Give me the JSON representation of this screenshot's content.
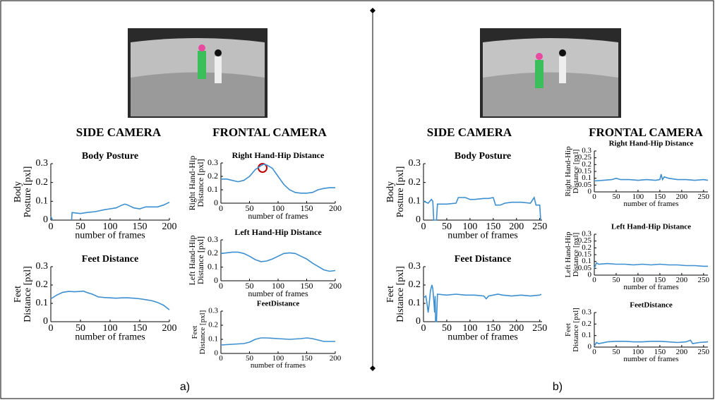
{
  "panels": [
    {
      "label": "a)",
      "headings": [
        "SIDE CAMERA",
        "FRONTAL CAMERA"
      ]
    },
    {
      "label": "b)",
      "headings": [
        "SIDE CAMERA",
        "FRONTAL CAMERA"
      ]
    }
  ],
  "chart_data": [
    {
      "type": "line",
      "title": "Body Posture",
      "ylabel": [
        "Body",
        "Posture [pxl]"
      ],
      "xlabel": "number of frames",
      "xlim": [
        0,
        200
      ],
      "xticks": [
        0,
        50,
        100,
        150,
        200
      ],
      "ylim": [
        0,
        0.3
      ],
      "yticks": [
        0,
        0.1,
        0.2,
        0.3
      ],
      "color": "#3d8fcf",
      "x": [
        0,
        3,
        5,
        35,
        36,
        50,
        60,
        75,
        90,
        100,
        110,
        120,
        125,
        130,
        140,
        150,
        160,
        170,
        180,
        190,
        200
      ],
      "values": [
        0.02,
        0,
        null,
        0,
        0.04,
        0.035,
        0.04,
        0.045,
        0.055,
        0.06,
        0.065,
        0.08,
        0.085,
        0.08,
        0.065,
        0.06,
        0.07,
        0.07,
        0.07,
        0.08,
        0.095
      ]
    },
    {
      "type": "line",
      "title": "Feet Distance",
      "ylabel": [
        "Feet",
        "Distance [pxl]"
      ],
      "xlabel": "number of frames",
      "xlim": [
        0,
        200
      ],
      "xticks": [
        0,
        50,
        100,
        150,
        200
      ],
      "ylim": [
        0,
        0.3
      ],
      "yticks": [
        0,
        0.1,
        0.2,
        0.3
      ],
      "color": "#3d8fcf",
      "x": [
        0,
        10,
        20,
        30,
        40,
        50,
        55,
        60,
        70,
        80,
        90,
        100,
        110,
        120,
        130,
        140,
        150,
        160,
        170,
        180,
        190,
        200
      ],
      "values": [
        0.125,
        0.145,
        0.16,
        0.165,
        0.163,
        0.165,
        0.167,
        0.16,
        0.15,
        0.135,
        0.132,
        0.13,
        0.128,
        0.13,
        0.13,
        0.128,
        0.125,
        0.12,
        0.115,
        0.105,
        0.09,
        0.065
      ]
    },
    {
      "type": "line",
      "title": "Right Hand-Hip Distance",
      "ylabel": [
        "Right Hand-Hip",
        "Distance [pxl]"
      ],
      "xlabel": "number of frames",
      "xlim": [
        0,
        200
      ],
      "xticks": [
        0,
        50,
        100,
        150,
        200
      ],
      "ylim": [
        0,
        0.3
      ],
      "yticks": [
        0,
        0.1,
        0.2,
        0.3
      ],
      "color": "#3d8fcf",
      "x": [
        0,
        10,
        20,
        30,
        40,
        50,
        60,
        70,
        75,
        80,
        90,
        100,
        110,
        120,
        130,
        140,
        150,
        160,
        170,
        180,
        190,
        200
      ],
      "values": [
        0.18,
        0.18,
        0.17,
        0.16,
        0.17,
        0.2,
        0.25,
        0.28,
        0.29,
        0.285,
        0.26,
        0.2,
        0.14,
        0.1,
        0.08,
        0.075,
        0.075,
        0.08,
        0.1,
        0.11,
        0.115,
        0.115
      ]
    },
    {
      "type": "line",
      "title": "Left Hand-Hip Distance",
      "ylabel": [
        "Left Hand-Hip",
        "Distance [pxl]"
      ],
      "xlabel": "number of frames",
      "xlim": [
        0,
        200
      ],
      "xticks": [
        0,
        50,
        100,
        150,
        200
      ],
      "ylim": [
        0,
        0.3
      ],
      "yticks": [
        0,
        0.1,
        0.2,
        0.3
      ],
      "color": "#3d8fcf",
      "x": [
        0,
        10,
        20,
        30,
        40,
        50,
        60,
        70,
        80,
        90,
        100,
        110,
        120,
        130,
        140,
        150,
        160,
        170,
        180,
        190,
        200
      ],
      "values": [
        0.2,
        0.205,
        0.21,
        0.21,
        0.2,
        0.18,
        0.155,
        0.14,
        0.145,
        0.16,
        0.18,
        0.2,
        0.205,
        0.2,
        0.18,
        0.16,
        0.13,
        0.105,
        0.08,
        0.07,
        0.075
      ]
    },
    {
      "type": "line",
      "title": "FeetDistance",
      "ylabel": [
        "Feet",
        "Distance [pxl]"
      ],
      "xlabel": "number of frames",
      "xlim": [
        0,
        200
      ],
      "xticks": [
        0,
        50,
        100,
        150,
        200
      ],
      "ylim": [
        0,
        0.3
      ],
      "yticks": [
        0,
        0.1,
        0.2,
        0.3
      ],
      "color": "#3d8fcf",
      "x": [
        0,
        20,
        40,
        50,
        60,
        70,
        80,
        100,
        120,
        140,
        150,
        160,
        170,
        180,
        200
      ],
      "values": [
        0.06,
        0.065,
        0.07,
        0.08,
        0.1,
        0.11,
        0.11,
        0.105,
        0.1,
        0.105,
        0.11,
        0.105,
        0.095,
        0.085,
        0.085
      ]
    },
    {
      "type": "line",
      "title": "Body Posture",
      "ylabel": [
        "Body",
        "Posture [pxl]"
      ],
      "xlabel": "number of frames",
      "xlim": [
        0,
        255
      ],
      "xticks": [
        0,
        50,
        100,
        150,
        200,
        250
      ],
      "ylim": [
        0,
        0.3
      ],
      "yticks": [
        0,
        0.1,
        0.2,
        0.3
      ],
      "color": "#3d8fcf",
      "x": [
        0,
        10,
        17,
        20,
        22,
        28,
        30,
        50,
        70,
        75,
        90,
        100,
        110,
        130,
        140,
        150,
        155,
        165,
        175,
        190,
        210,
        230,
        238,
        242,
        250,
        252
      ],
      "values": [
        0.1,
        0.09,
        0.11,
        0.1,
        0,
        0,
        0.085,
        0.085,
        0.09,
        0.12,
        0.12,
        0.11,
        0.11,
        0.115,
        0.115,
        0.12,
        0.08,
        0.08,
        0.09,
        0.095,
        0.095,
        0.09,
        0.12,
        0.08,
        0.08,
        0
      ]
    },
    {
      "type": "line",
      "title": "Feet Distance",
      "ylabel": [
        "Feet",
        "Distance [pxl]"
      ],
      "xlabel": "number of frames",
      "xlim": [
        0,
        255
      ],
      "xticks": [
        0,
        50,
        100,
        150,
        200,
        250
      ],
      "ylim": [
        0,
        0.3
      ],
      "yticks": [
        0,
        0.1,
        0.2,
        0.3
      ],
      "color": "#3d8fcf",
      "x": [
        0,
        5,
        8,
        10,
        12,
        15,
        18,
        20,
        22,
        24,
        25,
        26,
        28,
        30,
        50,
        70,
        90,
        110,
        130,
        135,
        140,
        160,
        170,
        190,
        210,
        230,
        250,
        253
      ],
      "values": [
        0.13,
        0.14,
        0.09,
        0.05,
        0.09,
        0.17,
        0.2,
        0.18,
        0.12,
        0.05,
        0.14,
        0,
        0,
        0.15,
        0.145,
        0.15,
        0.145,
        0.145,
        0.14,
        0.125,
        0.14,
        0.15,
        0.145,
        0.14,
        0.145,
        0.14,
        0.145,
        0.15
      ]
    },
    {
      "type": "line",
      "title": "Right Hand-Hip Distance",
      "ylabel": [
        "Right Hand-Hip",
        "Distance [pxl]"
      ],
      "xlabel": "number of frames",
      "xlim": [
        0,
        260
      ],
      "xticks": [
        0,
        50,
        100,
        150,
        200,
        250
      ],
      "ylim": [
        0,
        0.3
      ],
      "yticks": [
        0,
        0.05,
        0.1,
        0.15,
        0.2,
        0.25,
        0.3
      ],
      "color": "#3d8fcf",
      "x": [
        0,
        20,
        40,
        50,
        60,
        80,
        100,
        120,
        140,
        150,
        153,
        156,
        160,
        170,
        190,
        210,
        230,
        250,
        260
      ],
      "values": [
        0.08,
        0.085,
        0.09,
        0.1,
        0.09,
        0.09,
        0.085,
        0.09,
        0.085,
        0.09,
        0.13,
        0.09,
        0.11,
        0.1,
        0.09,
        0.09,
        0.085,
        0.09,
        0.085
      ]
    },
    {
      "type": "line",
      "title": "Left Hand-Hip Distance",
      "ylabel": [
        "Left Hand-Hip",
        "Distance [pxl]"
      ],
      "xlabel": "number of frames",
      "xlim": [
        0,
        260
      ],
      "xticks": [
        0,
        50,
        100,
        150,
        200,
        250
      ],
      "ylim": [
        0,
        0.3
      ],
      "yticks": [
        0,
        0.05,
        0.1,
        0.15,
        0.2,
        0.25,
        0.3
      ],
      "color": "#3d8fcf",
      "x": [
        0,
        5,
        10,
        30,
        50,
        70,
        90,
        110,
        130,
        150,
        170,
        190,
        210,
        230,
        250,
        260
      ],
      "values": [
        0.05,
        0.09,
        0.08,
        0.085,
        0.08,
        0.08,
        0.075,
        0.08,
        0.075,
        0.08,
        0.075,
        0.075,
        0.07,
        0.07,
        0.065,
        0.065
      ]
    },
    {
      "type": "line",
      "title": "FeetDistance",
      "ylabel": [
        "Feet",
        "Distance [pxl]"
      ],
      "xlabel": "number of frames",
      "xlim": [
        0,
        260
      ],
      "xticks": [
        0,
        50,
        100,
        150,
        200,
        250
      ],
      "ylim": [
        0,
        0.3
      ],
      "yticks": [
        0,
        0.1,
        0.2,
        0.3
      ],
      "color": "#3d8fcf",
      "x": [
        0,
        5,
        10,
        30,
        50,
        70,
        90,
        110,
        130,
        150,
        170,
        190,
        210,
        220,
        225,
        240,
        260
      ],
      "values": [
        0.01,
        0.04,
        0.03,
        0.045,
        0.05,
        0.05,
        0.045,
        0.045,
        0.05,
        0.05,
        0.045,
        0.04,
        0.045,
        0.06,
        0.03,
        0.04,
        0.045
      ]
    }
  ]
}
